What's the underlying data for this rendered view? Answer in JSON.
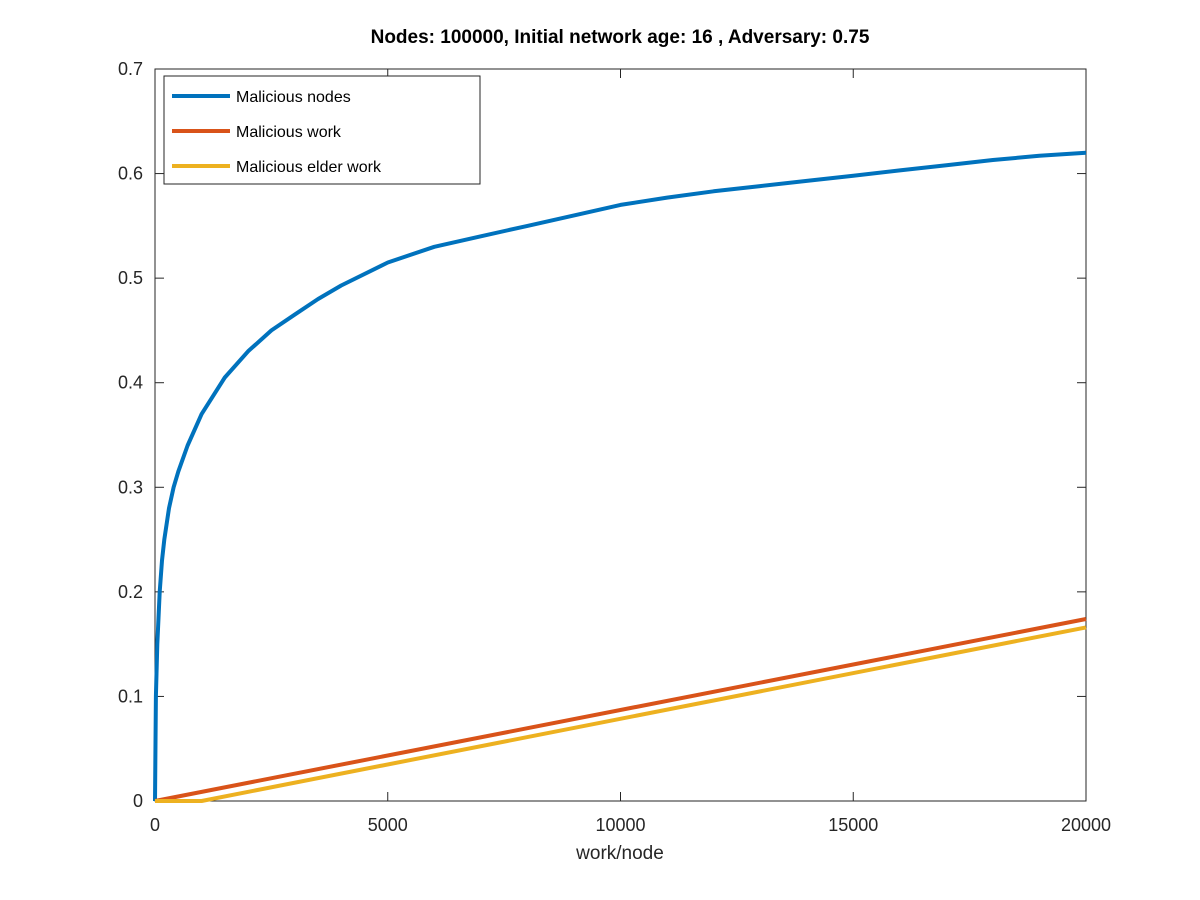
{
  "chart_data": {
    "type": "line",
    "title": "Nodes: 100000, Initial network age: 16 , Adversary: 0.75",
    "xlabel": "work/node",
    "ylabel": "",
    "xlim": [
      0,
      20000
    ],
    "ylim": [
      0,
      0.7
    ],
    "xticks": [
      0,
      5000,
      10000,
      15000,
      20000
    ],
    "xtick_labels": [
      "0",
      "5000",
      "10000",
      "15000",
      "20000"
    ],
    "yticks": [
      0,
      0.1,
      0.2,
      0.3,
      0.4,
      0.5,
      0.6,
      0.7
    ],
    "ytick_labels": [
      "0",
      "0.1",
      "0.2",
      "0.3",
      "0.4",
      "0.5",
      "0.6",
      "0.7"
    ],
    "grid": false,
    "legend_position": "top-left",
    "series": [
      {
        "name": "Malicious nodes",
        "color": "#0072BD",
        "x": [
          0,
          20,
          50,
          100,
          150,
          200,
          300,
          400,
          500,
          700,
          1000,
          1500,
          2000,
          2500,
          3000,
          3500,
          4000,
          5000,
          6000,
          7000,
          8000,
          9000,
          10000,
          11000,
          12000,
          13000,
          14000,
          15000,
          16000,
          17000,
          18000,
          19000,
          20000
        ],
        "y": [
          0.0,
          0.1,
          0.15,
          0.2,
          0.23,
          0.25,
          0.28,
          0.3,
          0.315,
          0.34,
          0.37,
          0.405,
          0.43,
          0.45,
          0.465,
          0.48,
          0.493,
          0.515,
          0.53,
          0.54,
          0.55,
          0.56,
          0.57,
          0.577,
          0.583,
          0.588,
          0.593,
          0.598,
          0.603,
          0.608,
          0.613,
          0.617,
          0.62
        ]
      },
      {
        "name": "Malicious work",
        "color": "#D95319",
        "x": [
          0,
          20000
        ],
        "y": [
          0.0,
          0.174
        ]
      },
      {
        "name": "Malicious elder work",
        "color": "#EDB120",
        "x": [
          0,
          1000,
          20000
        ],
        "y": [
          0.0,
          0.0,
          0.166
        ]
      }
    ]
  }
}
